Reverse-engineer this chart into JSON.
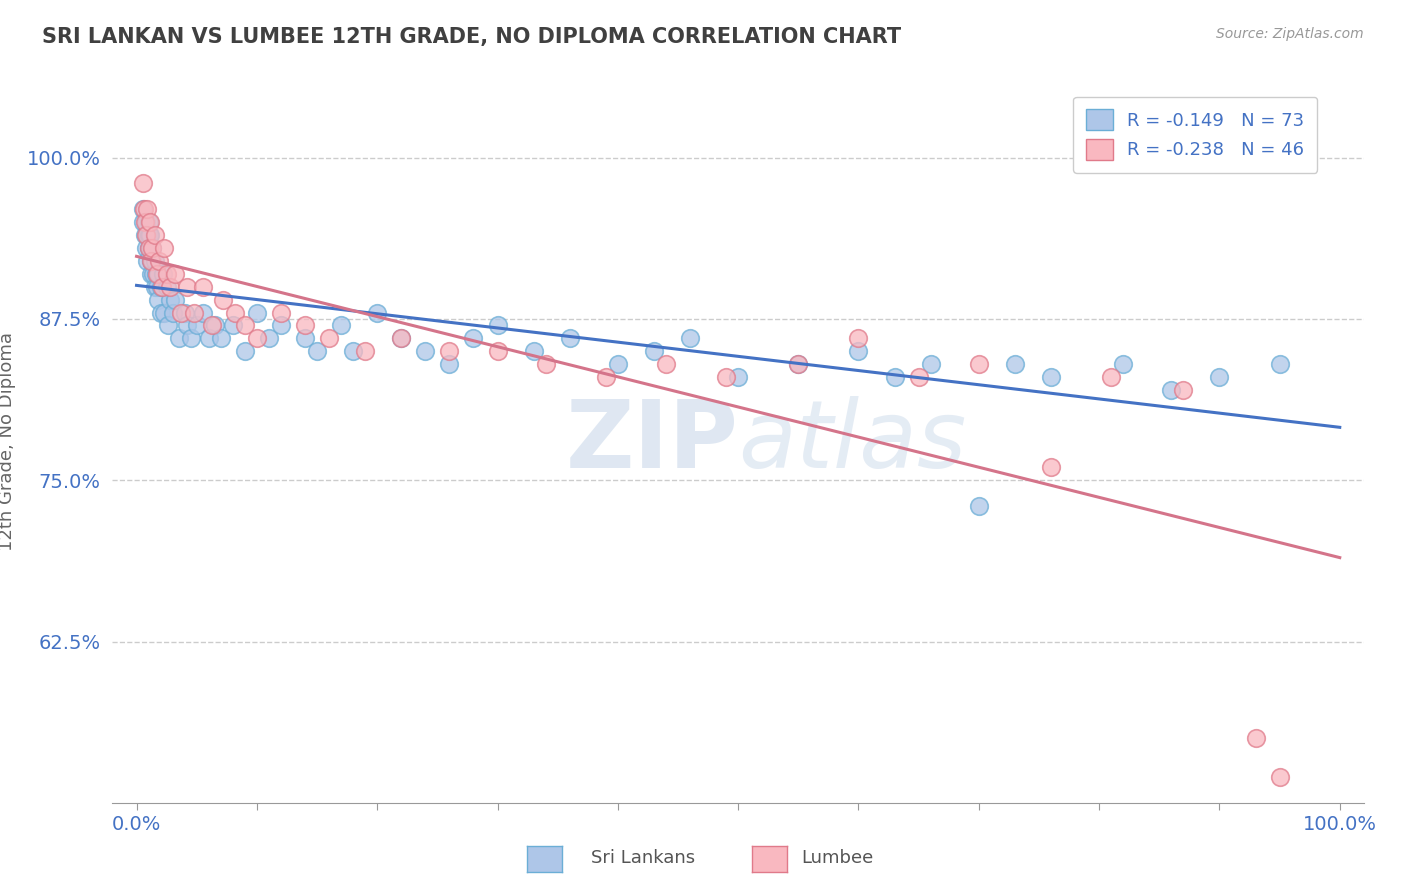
{
  "title": "SRI LANKAN VS LUMBEE 12TH GRADE, NO DIPLOMA CORRELATION CHART",
  "source_text": "Source: ZipAtlas.com",
  "ylabel": "12th Grade, No Diploma",
  "xlim": [
    -0.02,
    1.02
  ],
  "ylim": [
    0.5,
    1.06
  ],
  "yticks": [
    0.625,
    0.75,
    0.875,
    1.0
  ],
  "ytick_labels": [
    "62.5%",
    "75.0%",
    "87.5%",
    "100.0%"
  ],
  "xticks": [
    0.0,
    0.1,
    0.2,
    0.3,
    0.4,
    0.5,
    0.6,
    0.7,
    0.8,
    0.9,
    1.0
  ],
  "xtick_edge_labels": [
    "0.0%",
    "100.0%"
  ],
  "sri_lankan_color": "#aec6e8",
  "sri_lankan_edge": "#6baed6",
  "lumbee_color": "#f9b8c0",
  "lumbee_edge": "#e07a8a",
  "sri_lankan_R": -0.149,
  "sri_lankan_N": 73,
  "lumbee_R": -0.238,
  "lumbee_N": 46,
  "sri_lankan_line_color": "#4472c4",
  "lumbee_line_color": "#d4748a",
  "legend_label_1": "Sri Lankans",
  "legend_label_2": "Lumbee",
  "watermark_zip": "ZIP",
  "watermark_atlas": "atlas",
  "background_color": "#ffffff",
  "grid_color": "#cccccc",
  "title_color": "#404040",
  "axis_label_color": "#4472c4",
  "sl_x": [
    0.005,
    0.005,
    0.007,
    0.008,
    0.008,
    0.009,
    0.009,
    0.01,
    0.01,
    0.01,
    0.011,
    0.011,
    0.012,
    0.012,
    0.013,
    0.013,
    0.014,
    0.015,
    0.015,
    0.016,
    0.017,
    0.018,
    0.018,
    0.02,
    0.02,
    0.022,
    0.023,
    0.025,
    0.026,
    0.028,
    0.03,
    0.032,
    0.035,
    0.04,
    0.042,
    0.045,
    0.05,
    0.055,
    0.06,
    0.065,
    0.07,
    0.08,
    0.09,
    0.1,
    0.11,
    0.12,
    0.14,
    0.15,
    0.17,
    0.18,
    0.2,
    0.22,
    0.24,
    0.26,
    0.28,
    0.3,
    0.33,
    0.36,
    0.4,
    0.43,
    0.46,
    0.5,
    0.55,
    0.6,
    0.63,
    0.66,
    0.7,
    0.73,
    0.76,
    0.82,
    0.86,
    0.9,
    0.95
  ],
  "sl_y": [
    0.96,
    0.95,
    0.94,
    0.95,
    0.93,
    0.94,
    0.92,
    0.95,
    0.94,
    0.93,
    0.94,
    0.93,
    0.92,
    0.91,
    0.93,
    0.92,
    0.91,
    0.92,
    0.9,
    0.91,
    0.9,
    0.91,
    0.89,
    0.9,
    0.88,
    0.91,
    0.88,
    0.9,
    0.87,
    0.89,
    0.88,
    0.89,
    0.86,
    0.88,
    0.87,
    0.86,
    0.87,
    0.88,
    0.86,
    0.87,
    0.86,
    0.87,
    0.85,
    0.88,
    0.86,
    0.87,
    0.86,
    0.85,
    0.87,
    0.85,
    0.88,
    0.86,
    0.85,
    0.84,
    0.86,
    0.87,
    0.85,
    0.86,
    0.84,
    0.85,
    0.86,
    0.83,
    0.84,
    0.85,
    0.83,
    0.84,
    0.73,
    0.84,
    0.83,
    0.84,
    0.82,
    0.83,
    0.84
  ],
  "lu_x": [
    0.005,
    0.006,
    0.007,
    0.008,
    0.009,
    0.01,
    0.011,
    0.012,
    0.013,
    0.015,
    0.017,
    0.019,
    0.021,
    0.023,
    0.025,
    0.028,
    0.032,
    0.037,
    0.042,
    0.048,
    0.055,
    0.063,
    0.072,
    0.082,
    0.09,
    0.1,
    0.12,
    0.14,
    0.16,
    0.19,
    0.22,
    0.26,
    0.3,
    0.34,
    0.39,
    0.44,
    0.49,
    0.55,
    0.6,
    0.65,
    0.7,
    0.76,
    0.81,
    0.87,
    0.93,
    0.95
  ],
  "lu_y": [
    0.98,
    0.96,
    0.95,
    0.94,
    0.96,
    0.93,
    0.95,
    0.92,
    0.93,
    0.94,
    0.91,
    0.92,
    0.9,
    0.93,
    0.91,
    0.9,
    0.91,
    0.88,
    0.9,
    0.88,
    0.9,
    0.87,
    0.89,
    0.88,
    0.87,
    0.86,
    0.88,
    0.87,
    0.86,
    0.85,
    0.86,
    0.85,
    0.85,
    0.84,
    0.83,
    0.84,
    0.83,
    0.84,
    0.86,
    0.83,
    0.84,
    0.76,
    0.83,
    0.82,
    0.55,
    0.52
  ]
}
